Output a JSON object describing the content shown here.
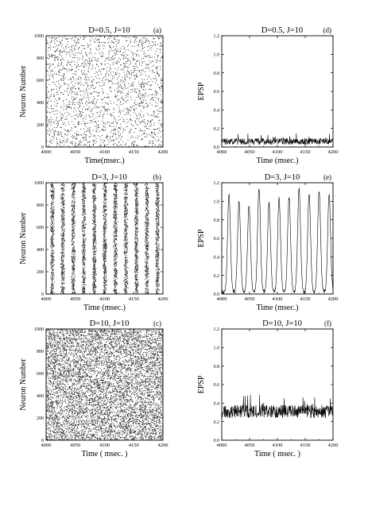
{
  "chart_data": [
    {
      "type": "scatter",
      "panel_label": "(a)",
      "title": "D=0.5, J=10",
      "xlabel": "Time(msec.)",
      "ylabel": "Neuron Number",
      "xlim": [
        4000,
        4200
      ],
      "ylim": [
        0,
        1000
      ],
      "x_ticks": [
        4000,
        4050,
        4100,
        4150,
        4200
      ],
      "y_ticks": [
        0,
        200,
        400,
        600,
        800,
        1000
      ],
      "pattern": "sparse-random",
      "spike_density": 0.18
    },
    {
      "type": "scatter",
      "panel_label": "(b)",
      "title": "D=3, J=10",
      "xlabel": "Time (msec.)",
      "ylabel": "Neuron Number",
      "xlim": [
        4000,
        4200
      ],
      "ylim": [
        0,
        1000
      ],
      "x_ticks": [
        4000,
        4050,
        4100,
        4150,
        4200
      ],
      "y_ticks": [
        0,
        200,
        400,
        600,
        800,
        1000
      ],
      "pattern": "synchronized-bands",
      "band_centers": [
        4010,
        4028,
        4046,
        4064,
        4082,
        4100,
        4118,
        4136,
        4154,
        4172,
        4190
      ],
      "band_width": 5
    },
    {
      "type": "scatter",
      "panel_label": "(c)",
      "title": "D=10, J=10",
      "xlabel": "Time ( msec. )",
      "ylabel": "Neuron Number",
      "xlim": [
        4000,
        4200
      ],
      "ylim": [
        0,
        1000
      ],
      "x_ticks": [
        4000,
        4050,
        4100,
        4150,
        4200
      ],
      "y_ticks": [
        0,
        200,
        400,
        600,
        800,
        1000
      ],
      "pattern": "dense-random",
      "spike_density": 0.55
    },
    {
      "type": "line",
      "panel_label": "(d)",
      "title": "D=0.5, J=10",
      "xlabel": "Time (msec.)",
      "ylabel": "EPSP",
      "xlim": [
        4000,
        4200
      ],
      "ylim": [
        0,
        1.2
      ],
      "x_ticks": [
        4000,
        4050,
        4100,
        4150,
        4200
      ],
      "y_ticks": [
        0.0,
        0.2,
        0.4,
        0.6,
        0.8,
        1.0,
        1.2
      ],
      "signal": "noise",
      "mean": 0.06,
      "amplitude": 0.035
    },
    {
      "type": "line",
      "panel_label": "(e)",
      "title": "D=3, J=10",
      "xlabel": "Time (msec.)",
      "ylabel": "EPSP",
      "xlim": [
        4000,
        4200
      ],
      "ylim": [
        0,
        1.2
      ],
      "x_ticks": [
        4000,
        4050,
        4100,
        4150,
        4200
      ],
      "y_ticks": [
        0.0,
        0.2,
        0.4,
        0.6,
        0.8,
        1.0,
        1.2
      ],
      "signal": "peaks",
      "peaks": [
        {
          "t": 4013,
          "v": 1.05
        },
        {
          "t": 4031,
          "v": 0.98
        },
        {
          "t": 4049,
          "v": 0.93
        },
        {
          "t": 4067,
          "v": 1.12
        },
        {
          "t": 4085,
          "v": 0.96
        },
        {
          "t": 4103,
          "v": 1.01
        },
        {
          "t": 4121,
          "v": 1.03
        },
        {
          "t": 4139,
          "v": 1.12
        },
        {
          "t": 4157,
          "v": 1.06
        },
        {
          "t": 4175,
          "v": 1.09
        },
        {
          "t": 4193,
          "v": 1.05
        }
      ],
      "baseline": 0.02
    },
    {
      "type": "line",
      "panel_label": "(f)",
      "title": "D=10, J=10",
      "xlabel": "Time ( msec. )",
      "ylabel": "EPSP",
      "xlim": [
        4000,
        4200
      ],
      "ylim": [
        0,
        1.2
      ],
      "x_ticks": [
        4000,
        4050,
        4100,
        4150,
        4200
      ],
      "y_ticks": [
        0.0,
        0.2,
        0.4,
        0.6,
        0.8,
        1.0,
        1.2
      ],
      "signal": "noise",
      "mean": 0.31,
      "amplitude": 0.07
    }
  ]
}
